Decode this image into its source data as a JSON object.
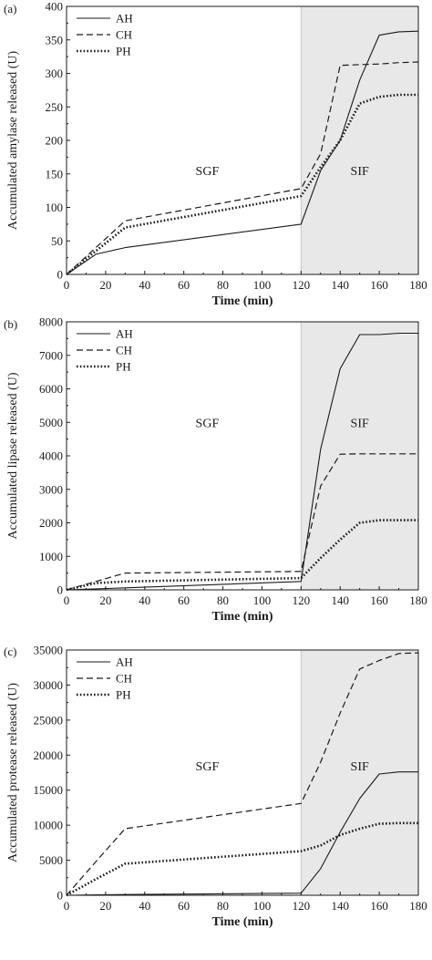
{
  "chart_data": [
    {
      "type": "line",
      "panel_label": "(a)",
      "xlabel": "Time (min)",
      "ylabel": "Accumulated amylase released (U)",
      "xlim": [
        0,
        180
      ],
      "ylim": [
        0,
        400
      ],
      "xticks": [
        0,
        20,
        40,
        60,
        80,
        100,
        120,
        140,
        160,
        180
      ],
      "yticks": [
        0,
        50,
        100,
        150,
        200,
        250,
        300,
        350,
        400
      ],
      "x": [
        0,
        15,
        30,
        120,
        130,
        140,
        150,
        160,
        170,
        180
      ],
      "regions": [
        {
          "label": "SGF",
          "from": 0,
          "to": 120,
          "shaded": false,
          "label_x": 72,
          "label_y": 155
        },
        {
          "label": "SIF",
          "from": 120,
          "to": 180,
          "shaded": true,
          "shade_color": "#e8e8e8",
          "label_x": 150,
          "label_y": 155
        }
      ],
      "legend_position": "top-left",
      "series": [
        {
          "name": "AH",
          "style": "solid",
          "values": [
            0,
            30,
            40,
            75,
            155,
            200,
            290,
            357,
            362,
            363
          ]
        },
        {
          "name": "CH",
          "style": "dashed",
          "values": [
            0,
            40,
            80,
            128,
            180,
            312,
            313,
            314,
            316,
            317
          ]
        },
        {
          "name": "PH",
          "style": "dotted",
          "values": [
            0,
            35,
            70,
            117,
            160,
            200,
            255,
            265,
            268,
            268
          ]
        }
      ]
    },
    {
      "type": "line",
      "panel_label": "(b)",
      "xlabel": "Time (min)",
      "ylabel": "Accumulated lipase released (U)",
      "xlim": [
        0,
        180
      ],
      "ylim": [
        0,
        8000
      ],
      "xticks": [
        0,
        20,
        40,
        60,
        80,
        100,
        120,
        140,
        160,
        180
      ],
      "yticks": [
        0,
        1000,
        2000,
        3000,
        4000,
        5000,
        6000,
        7000,
        8000
      ],
      "x": [
        0,
        15,
        30,
        120,
        130,
        140,
        150,
        160,
        170,
        180
      ],
      "regions": [
        {
          "label": "SGF",
          "from": 0,
          "to": 120,
          "shaded": false,
          "label_x": 72,
          "label_y": 5000
        },
        {
          "label": "SIF",
          "from": 120,
          "to": 180,
          "shaded": true,
          "shade_color": "#e8e8e8",
          "label_x": 150,
          "label_y": 5000
        }
      ],
      "legend_position": "top-left",
      "series": [
        {
          "name": "AH",
          "style": "solid",
          "values": [
            0,
            30,
            60,
            250,
            4200,
            6600,
            7620,
            7620,
            7660,
            7660
          ]
        },
        {
          "name": "CH",
          "style": "dashed",
          "values": [
            0,
            250,
            500,
            550,
            3100,
            4050,
            4060,
            4060,
            4060,
            4060
          ]
        },
        {
          "name": "PH",
          "style": "dotted",
          "values": [
            0,
            200,
            250,
            350,
            950,
            1500,
            2000,
            2080,
            2080,
            2080
          ]
        }
      ]
    },
    {
      "type": "line",
      "panel_label": "(c)",
      "xlabel": "Time (min)",
      "ylabel": "Accumulated protease released (U)",
      "xlim": [
        0,
        180
      ],
      "ylim": [
        0,
        35000
      ],
      "xticks": [
        0,
        20,
        40,
        60,
        80,
        100,
        120,
        140,
        160,
        180
      ],
      "yticks": [
        0,
        5000,
        10000,
        15000,
        20000,
        25000,
        30000,
        35000
      ],
      "x": [
        0,
        15,
        30,
        120,
        130,
        140,
        150,
        160,
        170,
        180
      ],
      "regions": [
        {
          "label": "SGF",
          "from": 0,
          "to": 120,
          "shaded": false,
          "label_x": 72,
          "label_y": 18500
        },
        {
          "label": "SIF",
          "from": 120,
          "to": 180,
          "shaded": true,
          "shade_color": "#e8e8e8",
          "label_x": 150,
          "label_y": 18500
        }
      ],
      "legend_position": "top-left",
      "series": [
        {
          "name": "AH",
          "style": "solid",
          "values": [
            0,
            50,
            100,
            300,
            3800,
            9000,
            13800,
            17300,
            17600,
            17600
          ]
        },
        {
          "name": "CH",
          "style": "dashed",
          "values": [
            0,
            4800,
            9500,
            13100,
            19000,
            26000,
            32300,
            33500,
            34500,
            34600
          ]
        },
        {
          "name": "PH",
          "style": "dotted",
          "values": [
            0,
            2300,
            4500,
            6300,
            7100,
            8600,
            9500,
            10200,
            10300,
            10300
          ]
        }
      ]
    }
  ]
}
